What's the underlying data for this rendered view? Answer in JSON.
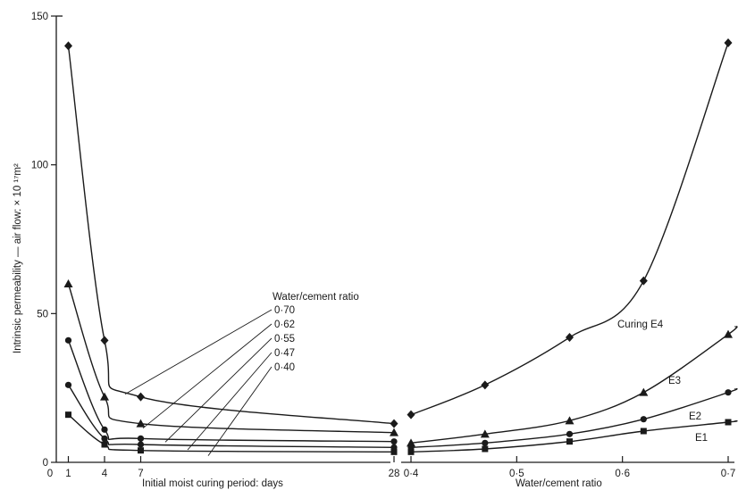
{
  "chart_data": [
    {
      "type": "line",
      "xlabel": "Initial moist curing period: days",
      "ylabel": "Intrinsic permeability — air flow: × 10  ¹⁷m²",
      "x_tick_labels": [
        "0",
        "1",
        "4",
        "7",
        "28"
      ],
      "xlim": [
        0,
        28
      ],
      "ylim": [
        0,
        150
      ],
      "y_tick_labels": [
        "0",
        "50",
        "100",
        "150"
      ],
      "legend_title": "Water/cement ratio",
      "x": [
        1,
        4,
        7,
        28
      ],
      "series": [
        {
          "name": "0·70",
          "marker": "diamond",
          "values": [
            140,
            41,
            22,
            13
          ]
        },
        {
          "name": "0·62",
          "marker": "triangle",
          "values": [
            60,
            22,
            13,
            10
          ]
        },
        {
          "name": "0·55",
          "marker": "circle",
          "values": [
            41,
            11,
            8,
            7
          ]
        },
        {
          "name": "0·47",
          "marker": "circle",
          "values": [
            26,
            8,
            6,
            5
          ]
        },
        {
          "name": "0·40",
          "marker": "square",
          "values": [
            16,
            6,
            4,
            3.5
          ]
        }
      ]
    },
    {
      "type": "line",
      "xlabel": "Water/cement ratio",
      "x_tick_labels": [
        "0·4",
        "0·5",
        "0·6",
        "0·7"
      ],
      "xlim": [
        0.4,
        0.7
      ],
      "ylim": [
        0,
        150
      ],
      "x": [
        0.4,
        0.47,
        0.55,
        0.62,
        0.7
      ],
      "series": [
        {
          "name": "Curing E4",
          "marker": "diamond",
          "values": [
            16,
            26,
            42,
            61,
            141
          ]
        },
        {
          "name": "E3",
          "marker": "triangle",
          "values": [
            6.5,
            9.5,
            14,
            23.5,
            43
          ]
        },
        {
          "name": "E2",
          "marker": "circle",
          "values": [
            5,
            6.5,
            9.5,
            14.5,
            23.5
          ]
        },
        {
          "name": "E1",
          "marker": "square",
          "values": [
            3.5,
            4.5,
            7,
            10.5,
            13.5
          ]
        }
      ]
    }
  ]
}
